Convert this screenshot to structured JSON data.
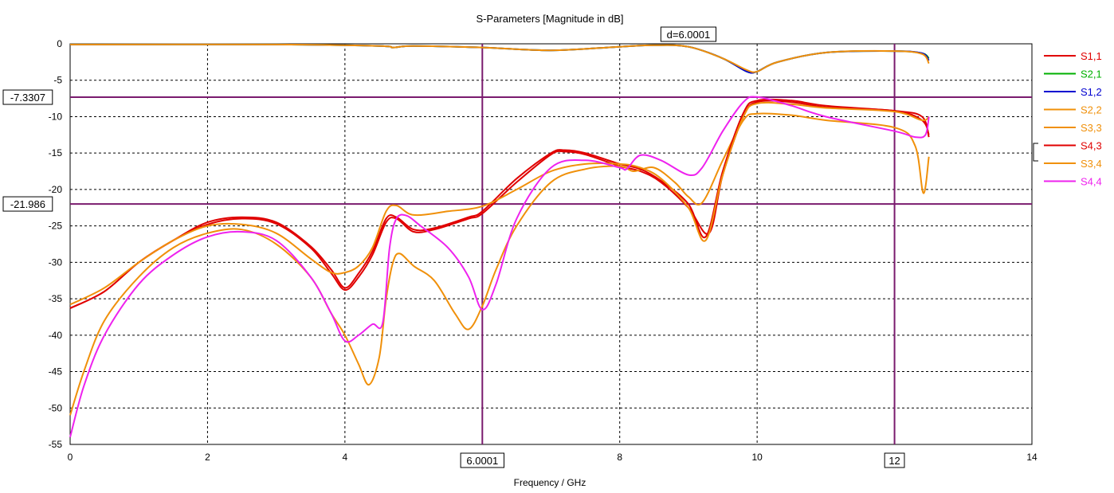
{
  "chart_data": {
    "type": "line",
    "title": "S-Parameters [Magnitude in dB]",
    "xlabel": "Frequency / GHz",
    "ylabel": "",
    "xlim": [
      0,
      14
    ],
    "ylim": [
      -55,
      0
    ],
    "x_ticks": [
      "0",
      "2",
      "4",
      "6",
      "8",
      "10",
      "12",
      "14"
    ],
    "y_ticks": [
      "0",
      "-5",
      "-10",
      "-15",
      "-20",
      "-25",
      "-30",
      "-35",
      "-40",
      "-45",
      "-50",
      "-55"
    ],
    "grid": true,
    "legend_position": "right",
    "markers": {
      "vertical": [
        {
          "x": 6.0001,
          "label": "6.0001"
        },
        {
          "x": 12,
          "label": "12"
        }
      ],
      "horizontal": [
        {
          "y": -7.3307,
          "label": "-7.3307"
        },
        {
          "y": -21.986,
          "label": "-21.986"
        }
      ],
      "delta_label": "d=6.0001"
    },
    "series": [
      {
        "name": "S1,1",
        "color": "#e00000",
        "points": [
          [
            0,
            -36.3
          ],
          [
            0.5,
            -34
          ],
          [
            1,
            -30
          ],
          [
            1.5,
            -27
          ],
          [
            2,
            -24.8
          ],
          [
            2.5,
            -24
          ],
          [
            3,
            -24.7
          ],
          [
            3.5,
            -28
          ],
          [
            3.8,
            -31.5
          ],
          [
            4,
            -33.8
          ],
          [
            4.2,
            -32
          ],
          [
            4.4,
            -29
          ],
          [
            4.6,
            -24.5
          ],
          [
            4.75,
            -24
          ],
          [
            5,
            -25.8
          ],
          [
            5.3,
            -25.5
          ],
          [
            5.8,
            -24
          ],
          [
            6,
            -23.3
          ],
          [
            6.5,
            -19
          ],
          [
            7,
            -15.2
          ],
          [
            7.2,
            -14.8
          ],
          [
            7.5,
            -15.2
          ],
          [
            8,
            -16.8
          ],
          [
            8.3,
            -17.5
          ],
          [
            8.6,
            -19
          ],
          [
            9,
            -22.5
          ],
          [
            9.3,
            -26
          ],
          [
            9.5,
            -18
          ],
          [
            9.8,
            -10
          ],
          [
            10,
            -8
          ],
          [
            10.5,
            -8
          ],
          [
            11,
            -8.7
          ],
          [
            12,
            -9.2
          ],
          [
            12.4,
            -10.5
          ],
          [
            12.5,
            -12.5
          ]
        ]
      },
      {
        "name": "S2,1",
        "color": "#00b000",
        "points": [
          [
            0,
            -0.1
          ],
          [
            3,
            -0.1
          ],
          [
            4.5,
            -0.3
          ],
          [
            4.7,
            -0.5
          ],
          [
            5,
            -0.3
          ],
          [
            6,
            -0.5
          ],
          [
            7,
            -0.9
          ],
          [
            8,
            -0.4
          ],
          [
            8.5,
            -0.2
          ],
          [
            9,
            -0.4
          ],
          [
            9.5,
            -2
          ],
          [
            9.85,
            -3.8
          ],
          [
            10,
            -3.8
          ],
          [
            10.3,
            -2.5
          ],
          [
            11,
            -1.2
          ],
          [
            12,
            -1
          ],
          [
            12.4,
            -1.3
          ],
          [
            12.5,
            -2
          ]
        ]
      },
      {
        "name": "S1,2",
        "color": "#0000d0",
        "points": [
          [
            0,
            -0.1
          ],
          [
            3,
            -0.1
          ],
          [
            4.5,
            -0.3
          ],
          [
            4.7,
            -0.5
          ],
          [
            5,
            -0.3
          ],
          [
            6,
            -0.5
          ],
          [
            7,
            -0.9
          ],
          [
            8,
            -0.4
          ],
          [
            8.5,
            -0.2
          ],
          [
            9,
            -0.4
          ],
          [
            9.5,
            -2
          ],
          [
            9.85,
            -3.8
          ],
          [
            10,
            -3.8
          ],
          [
            10.3,
            -2.5
          ],
          [
            11,
            -1.2
          ],
          [
            12,
            -1
          ],
          [
            12.4,
            -1.3
          ],
          [
            12.5,
            -2.3
          ]
        ]
      },
      {
        "name": "S2,2",
        "color": "#f0900a",
        "points": [
          [
            0,
            -0.1
          ],
          [
            3,
            -0.1
          ],
          [
            4.5,
            -0.3
          ],
          [
            4.7,
            -0.5
          ],
          [
            5,
            -0.3
          ],
          [
            6,
            -0.5
          ],
          [
            7,
            -0.9
          ],
          [
            8,
            -0.4
          ],
          [
            8.5,
            -0.2
          ],
          [
            9,
            -0.4
          ],
          [
            9.5,
            -2
          ],
          [
            9.85,
            -3.6
          ],
          [
            10,
            -3.8
          ],
          [
            10.3,
            -2.5
          ],
          [
            11,
            -1.2
          ],
          [
            12,
            -1
          ],
          [
            12.4,
            -1.4
          ],
          [
            12.5,
            -2.7
          ]
        ]
      },
      {
        "name": "S3,3",
        "color": "#f0900a",
        "points": [
          [
            0,
            -51
          ],
          [
            0.2,
            -45
          ],
          [
            0.5,
            -38
          ],
          [
            1,
            -32
          ],
          [
            1.5,
            -28
          ],
          [
            2,
            -26
          ],
          [
            2.5,
            -25.5
          ],
          [
            3,
            -27.5
          ],
          [
            3.5,
            -32
          ],
          [
            3.8,
            -37
          ],
          [
            4,
            -40
          ],
          [
            4.2,
            -44
          ],
          [
            4.35,
            -46.8
          ],
          [
            4.5,
            -43
          ],
          [
            4.6,
            -35
          ],
          [
            4.7,
            -30
          ],
          [
            4.8,
            -28.8
          ],
          [
            5,
            -30.5
          ],
          [
            5.3,
            -32.5
          ],
          [
            5.6,
            -37
          ],
          [
            5.8,
            -39.2
          ],
          [
            6,
            -36
          ],
          [
            6.2,
            -31
          ],
          [
            6.5,
            -25
          ],
          [
            7,
            -19
          ],
          [
            7.5,
            -17.2
          ],
          [
            8,
            -16.8
          ],
          [
            8.2,
            -17.5
          ],
          [
            8.5,
            -17
          ],
          [
            8.8,
            -19
          ],
          [
            9,
            -21
          ],
          [
            9.2,
            -21.8
          ],
          [
            9.5,
            -16
          ],
          [
            9.8,
            -10.5
          ],
          [
            10,
            -9.6
          ],
          [
            10.5,
            -9.8
          ],
          [
            11,
            -10.5
          ],
          [
            12,
            -11.5
          ],
          [
            12.3,
            -14
          ],
          [
            12.42,
            -20.5
          ],
          [
            12.5,
            -15.5
          ]
        ]
      },
      {
        "name": "S4,3",
        "color": "#e00000",
        "points": [
          [
            0,
            -36.3
          ],
          [
            0.5,
            -34
          ],
          [
            1,
            -30
          ],
          [
            1.5,
            -27
          ],
          [
            2,
            -24.5
          ],
          [
            2.5,
            -23.8
          ],
          [
            3,
            -24.5
          ],
          [
            3.5,
            -27.8
          ],
          [
            3.8,
            -31
          ],
          [
            4,
            -33.5
          ],
          [
            4.2,
            -31.5
          ],
          [
            4.4,
            -28.5
          ],
          [
            4.6,
            -24
          ],
          [
            4.75,
            -23.8
          ],
          [
            5,
            -25.5
          ],
          [
            5.3,
            -25.3
          ],
          [
            5.8,
            -23.8
          ],
          [
            6,
            -23
          ],
          [
            6.5,
            -18.5
          ],
          [
            7,
            -15
          ],
          [
            7.2,
            -14.6
          ],
          [
            7.5,
            -15
          ],
          [
            8,
            -16.5
          ],
          [
            8.3,
            -17.2
          ],
          [
            8.6,
            -18.8
          ],
          [
            9,
            -22
          ],
          [
            9.25,
            -26.5
          ],
          [
            9.5,
            -17.5
          ],
          [
            9.8,
            -9.5
          ],
          [
            10,
            -7.8
          ],
          [
            10.5,
            -7.8
          ],
          [
            11,
            -8.5
          ],
          [
            12,
            -9.2
          ],
          [
            12.4,
            -10
          ],
          [
            12.5,
            -12.8
          ]
        ]
      },
      {
        "name": "S3,4",
        "color": "#f0900a",
        "points": [
          [
            0,
            -35.8
          ],
          [
            0.5,
            -33.5
          ],
          [
            1,
            -30
          ],
          [
            1.5,
            -27
          ],
          [
            2,
            -25
          ],
          [
            2.5,
            -24.8
          ],
          [
            3,
            -26
          ],
          [
            3.5,
            -29.5
          ],
          [
            3.8,
            -31.4
          ],
          [
            4,
            -31.4
          ],
          [
            4.2,
            -30.5
          ],
          [
            4.4,
            -28
          ],
          [
            4.6,
            -23
          ],
          [
            4.75,
            -22.2
          ],
          [
            5,
            -23.5
          ],
          [
            5.5,
            -23
          ],
          [
            6,
            -22.3
          ],
          [
            6.5,
            -20
          ],
          [
            7,
            -17.5
          ],
          [
            7.5,
            -16.5
          ],
          [
            8,
            -16.5
          ],
          [
            8.3,
            -17
          ],
          [
            8.6,
            -18.5
          ],
          [
            9,
            -22.5
          ],
          [
            9.25,
            -27
          ],
          [
            9.5,
            -18
          ],
          [
            9.8,
            -10
          ],
          [
            10,
            -8.2
          ],
          [
            10.5,
            -8.3
          ],
          [
            11,
            -8.8
          ],
          [
            12,
            -9.3
          ],
          [
            12.4,
            -10.5
          ],
          [
            12.5,
            -10
          ]
        ]
      },
      {
        "name": "S4,4",
        "color": "#ee22ee",
        "points": [
          [
            0,
            -54
          ],
          [
            0.2,
            -47
          ],
          [
            0.5,
            -40
          ],
          [
            1,
            -33
          ],
          [
            1.5,
            -29
          ],
          [
            2,
            -26.5
          ],
          [
            2.5,
            -25.8
          ],
          [
            3,
            -27
          ],
          [
            3.5,
            -32
          ],
          [
            3.8,
            -37
          ],
          [
            4,
            -40.8
          ],
          [
            4.2,
            -40
          ],
          [
            4.4,
            -38.5
          ],
          [
            4.55,
            -38.3
          ],
          [
            4.65,
            -28
          ],
          [
            4.75,
            -24
          ],
          [
            4.9,
            -23.6
          ],
          [
            5.1,
            -25
          ],
          [
            5.5,
            -28
          ],
          [
            5.8,
            -32
          ],
          [
            6,
            -36.5
          ],
          [
            6.2,
            -33
          ],
          [
            6.5,
            -24
          ],
          [
            7,
            -17
          ],
          [
            7.5,
            -16
          ],
          [
            8,
            -17
          ],
          [
            8.1,
            -17.2
          ],
          [
            8.3,
            -15.3
          ],
          [
            8.6,
            -16
          ],
          [
            9,
            -18
          ],
          [
            9.2,
            -17
          ],
          [
            9.5,
            -12
          ],
          [
            9.8,
            -8
          ],
          [
            10,
            -7.3
          ],
          [
            10.5,
            -8.5
          ],
          [
            11,
            -10
          ],
          [
            12,
            -12
          ],
          [
            12.3,
            -12.8
          ],
          [
            12.45,
            -12.5
          ],
          [
            12.5,
            -10
          ]
        ]
      }
    ]
  }
}
